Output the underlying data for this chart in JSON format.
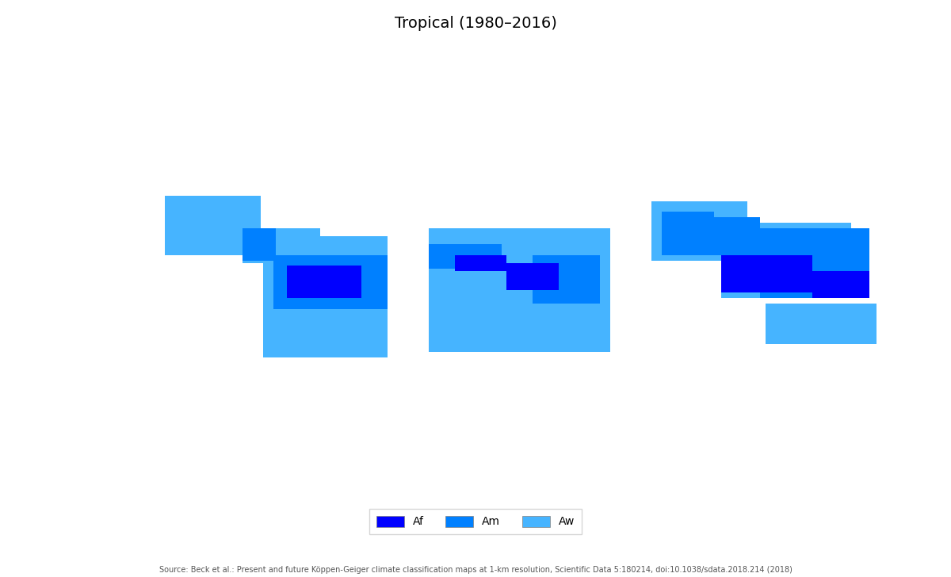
{
  "title": "Tropical (1980–2016)",
  "legend_items": [
    {
      "label": "Af",
      "color": "#0000FF"
    },
    {
      "label": "Am",
      "color": "#0080FF"
    },
    {
      "label": "Aw",
      "color": "#46B4FF"
    }
  ],
  "source_text": "Source: Beck et al.: Present and future Köppen-Geiger climate classification maps at 1-km resolution, Scientific Data 5:180214, doi:10.1038/sdata.2018.214 (2018)",
  "background_color": "#FFFFFF",
  "ocean_color": "#FFFFFF",
  "land_color": "#C8C8C8",
  "border_color": "#808080",
  "af_color": "#0000FF",
  "am_color": "#0080FF",
  "aw_color": "#46B4FF",
  "title_fontsize": 14,
  "source_fontsize": 7,
  "legend_fontsize": 10,
  "xlim": [
    -180,
    180
  ],
  "ylim": [
    -90,
    90
  ]
}
